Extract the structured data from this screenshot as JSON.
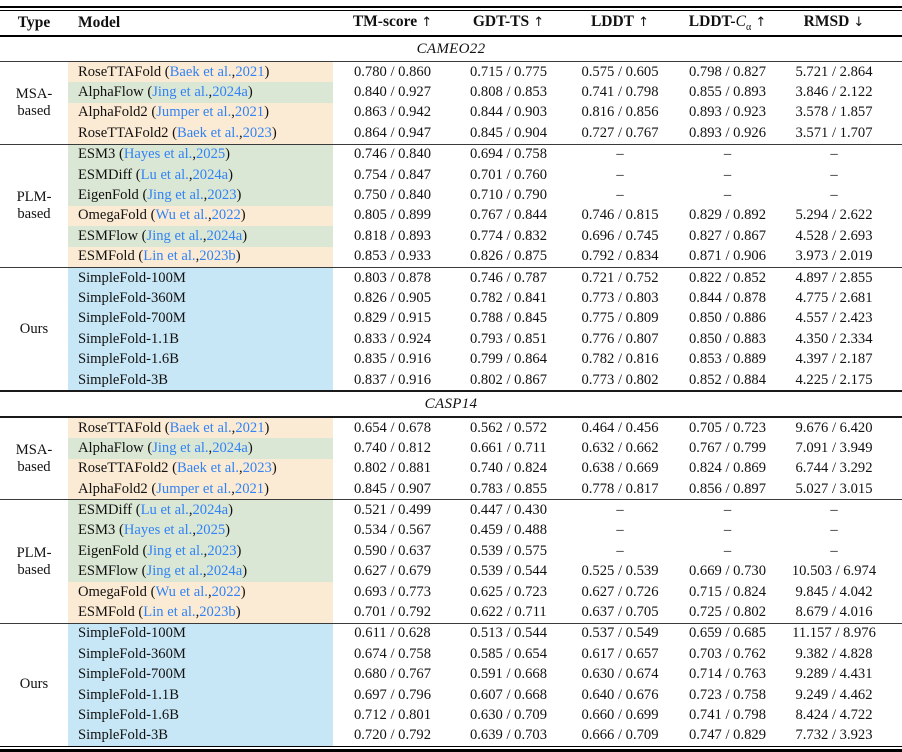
{
  "header": {
    "type": "Type",
    "model": "Model",
    "metrics": [
      {
        "name": "TM-score",
        "arrow": "↑"
      },
      {
        "name": "GDT-TS",
        "arrow": "↑"
      },
      {
        "name": "LDDT",
        "arrow": "↑"
      },
      {
        "name": "LDDT-",
        "italic": "C",
        "sub": "α",
        "arrow": "↑"
      },
      {
        "name": "RMSD",
        "arrow": "↓"
      }
    ]
  },
  "colors": {
    "peach": "#fcebd4",
    "green": "#dbe7d5",
    "blue": "#c8e7f6",
    "link": "#3183f5"
  },
  "sections": [
    {
      "title": "CAMEO22",
      "groups": [
        {
          "label_lines": [
            "MSA-",
            "based"
          ],
          "rows": [
            {
              "model": "RoseTTAFold",
              "cite_authors": "Baek et al.",
              "cite_year": "2021",
              "hl": "peach",
              "values": [
                "0.780 / 0.860",
                "0.715 / 0.775",
                "0.575 / 0.605",
                "0.798 / 0.827",
                "5.721 / 2.864"
              ]
            },
            {
              "model": "AlphaFlow",
              "cite_authors": "Jing et al.",
              "cite_year": "2024a",
              "hl": "green",
              "values": [
                "0.840 / 0.927",
                "0.808 / 0.853",
                "0.741 / 0.798",
                "0.855 / 0.893",
                "3.846 / 2.122"
              ]
            },
            {
              "model": "AlphaFold2",
              "cite_authors": "Jumper et al.",
              "cite_year": "2021",
              "hl": "peach",
              "values": [
                "0.863 / 0.942",
                "0.844 / 0.903",
                "0.816 / 0.856",
                "0.893 / 0.923",
                "3.578 / 1.857"
              ]
            },
            {
              "model": "RoseTTAFold2",
              "cite_authors": "Baek et al.",
              "cite_year": "2023",
              "hl": "peach",
              "values": [
                "0.864 / 0.947",
                "0.845 / 0.904",
                "0.727 / 0.767",
                "0.893 / 0.926",
                "3.571 / 1.707"
              ]
            }
          ]
        },
        {
          "label_lines": [
            "PLM-",
            "based"
          ],
          "rows": [
            {
              "model": "ESM3",
              "cite_authors": "Hayes et al.",
              "cite_year": "2025",
              "hl": "green",
              "values": [
                "0.746 / 0.840",
                "0.694 / 0.758",
                "–",
                "–",
                "–"
              ]
            },
            {
              "model": "ESMDiff",
              "cite_authors": "Lu et al.",
              "cite_year": "2024a",
              "hl": "green",
              "values": [
                "0.754 / 0.847",
                "0.701 / 0.760",
                "–",
                "–",
                "–"
              ]
            },
            {
              "model": "EigenFold",
              "cite_authors": "Jing et al.",
              "cite_year": "2023",
              "hl": "green",
              "values": [
                "0.750 / 0.840",
                "0.710 / 0.790",
                "–",
                "–",
                "–"
              ]
            },
            {
              "model": "OmegaFold",
              "cite_authors": "Wu et al.",
              "cite_year": "2022",
              "hl": "peach",
              "values": [
                "0.805 / 0.899",
                "0.767 / 0.844",
                "0.746 / 0.815",
                "0.829 / 0.892",
                "5.294 / 2.622"
              ]
            },
            {
              "model": "ESMFlow",
              "cite_authors": "Jing et al.",
              "cite_year": "2024a",
              "hl": "green",
              "values": [
                "0.818 / 0.893",
                "0.774 / 0.832",
                "0.696 / 0.745",
                "0.827 / 0.867",
                "4.528 / 2.693"
              ]
            },
            {
              "model": "ESMFold",
              "cite_authors": "Lin et al.",
              "cite_year": "2023b",
              "hl": "peach",
              "values": [
                "0.853 / 0.933",
                "0.826 / 0.875",
                "0.792 / 0.834",
                "0.871 / 0.906",
                "3.973 / 2.019"
              ]
            }
          ]
        },
        {
          "label_lines": [
            "Ours"
          ],
          "rows": [
            {
              "model": "SimpleFold-100M",
              "cite_authors": null,
              "cite_year": null,
              "hl": "blue",
              "values": [
                "0.803 / 0.878",
                "0.746 / 0.787",
                "0.721 / 0.752",
                "0.822 / 0.852",
                "4.897 / 2.855"
              ]
            },
            {
              "model": "SimpleFold-360M",
              "cite_authors": null,
              "cite_year": null,
              "hl": "blue",
              "values": [
                "0.826 / 0.905",
                "0.782 / 0.841",
                "0.773 / 0.803",
                "0.844 / 0.878",
                "4.775 / 2.681"
              ]
            },
            {
              "model": "SimpleFold-700M",
              "cite_authors": null,
              "cite_year": null,
              "hl": "blue",
              "values": [
                "0.829 / 0.915",
                "0.788 / 0.845",
                "0.775 / 0.809",
                "0.850 / 0.886",
                "4.557 / 2.423"
              ]
            },
            {
              "model": "SimpleFold-1.1B",
              "cite_authors": null,
              "cite_year": null,
              "hl": "blue",
              "values": [
                "0.833 / 0.924",
                "0.793 / 0.851",
                "0.776 / 0.807",
                "0.850 / 0.883",
                "4.350 / 2.334"
              ]
            },
            {
              "model": "SimpleFold-1.6B",
              "cite_authors": null,
              "cite_year": null,
              "hl": "blue",
              "values": [
                "0.835 / 0.916",
                "0.799 / 0.864",
                "0.782 / 0.816",
                "0.853 / 0.889",
                "4.397 / 2.187"
              ]
            },
            {
              "model": "SimpleFold-3B",
              "cite_authors": null,
              "cite_year": null,
              "hl": "blue",
              "values": [
                "0.837 / 0.916",
                "0.802 / 0.867",
                "0.773 / 0.802",
                "0.852 / 0.884",
                "4.225 / 2.175"
              ]
            }
          ]
        }
      ]
    },
    {
      "title": "CASP14",
      "groups": [
        {
          "label_lines": [
            "MSA-",
            "based"
          ],
          "rows": [
            {
              "model": "RoseTTAFold",
              "cite_authors": "Baek et al.",
              "cite_year": "2021",
              "hl": "peach",
              "values": [
                "0.654 / 0.678",
                "0.562 / 0.572",
                "0.464 / 0.456",
                "0.705 / 0.723",
                "9.676 / 6.420"
              ]
            },
            {
              "model": "AlphaFlow",
              "cite_authors": "Jing et al.",
              "cite_year": "2024a",
              "hl": "green",
              "values": [
                "0.740 / 0.812",
                "0.661 / 0.711",
                "0.632 / 0.662",
                "0.767 / 0.799",
                "7.091 / 3.949"
              ]
            },
            {
              "model": "RoseTTAFold2",
              "cite_authors": "Baek et al.",
              "cite_year": "2023",
              "hl": "peach",
              "values": [
                "0.802 / 0.881",
                "0.740 / 0.824",
                "0.638 / 0.669",
                "0.824 / 0.869",
                "6.744 / 3.292"
              ]
            },
            {
              "model": "AlphaFold2",
              "cite_authors": "Jumper et al.",
              "cite_year": "2021",
              "hl": "peach",
              "values": [
                "0.845 / 0.907",
                "0.783 / 0.855",
                "0.778 / 0.817",
                "0.856 / 0.897",
                "5.027 / 3.015"
              ]
            }
          ]
        },
        {
          "label_lines": [
            "PLM-",
            "based"
          ],
          "rows": [
            {
              "model": "ESMDiff",
              "cite_authors": "Lu et al.",
              "cite_year": "2024a",
              "hl": "green",
              "values": [
                "0.521 / 0.499",
                "0.447 / 0.430",
                "–",
                "–",
                "–"
              ]
            },
            {
              "model": "ESM3",
              "cite_authors": "Hayes et al.",
              "cite_year": "2025",
              "hl": "green",
              "values": [
                "0.534 / 0.567",
                "0.459 / 0.488",
                "–",
                "–",
                "–"
              ]
            },
            {
              "model": "EigenFold",
              "cite_authors": "Jing et al.",
              "cite_year": "2023",
              "hl": "green",
              "values": [
                "0.590 / 0.637",
                "0.539 / 0.575",
                "–",
                "–",
                "–"
              ]
            },
            {
              "model": "ESMFlow",
              "cite_authors": "Jing et al.",
              "cite_year": "2024a",
              "hl": "green",
              "values": [
                "0.627 / 0.679",
                "0.539 / 0.544",
                "0.525 / 0.539",
                "0.669 / 0.730",
                "10.503 / 6.974"
              ]
            },
            {
              "model": "OmegaFold",
              "cite_authors": "Wu et al.",
              "cite_year": "2022",
              "hl": "peach",
              "values": [
                "0.693 / 0.773",
                "0.625 / 0.723",
                "0.627 / 0.726",
                "0.715 / 0.824",
                "9.845 / 4.042"
              ]
            },
            {
              "model": "ESMFold",
              "cite_authors": "Lin et al.",
              "cite_year": "2023b",
              "hl": "peach",
              "values": [
                "0.701 / 0.792",
                "0.622 / 0.711",
                "0.637 / 0.705",
                "0.725 / 0.802",
                "8.679 / 4.016"
              ]
            }
          ]
        },
        {
          "label_lines": [
            "Ours"
          ],
          "rows": [
            {
              "model": "SimpleFold-100M",
              "cite_authors": null,
              "cite_year": null,
              "hl": "blue",
              "values": [
                "0.611 / 0.628",
                "0.513 / 0.544",
                "0.537 / 0.549",
                "0.659 / 0.685",
                "11.157 / 8.976"
              ]
            },
            {
              "model": "SimpleFold-360M",
              "cite_authors": null,
              "cite_year": null,
              "hl": "blue",
              "values": [
                "0.674 / 0.758",
                "0.585 / 0.654",
                "0.617 / 0.657",
                "0.703 / 0.762",
                "9.382 / 4.828"
              ]
            },
            {
              "model": "SimpleFold-700M",
              "cite_authors": null,
              "cite_year": null,
              "hl": "blue",
              "values": [
                "0.680 / 0.767",
                "0.591 / 0.668",
                "0.630 / 0.674",
                "0.714 / 0.763",
                "9.289 / 4.431"
              ]
            },
            {
              "model": "SimpleFold-1.1B",
              "cite_authors": null,
              "cite_year": null,
              "hl": "blue",
              "values": [
                "0.697 / 0.796",
                "0.607 / 0.668",
                "0.640 / 0.676",
                "0.723 / 0.758",
                "9.249 / 4.462"
              ]
            },
            {
              "model": "SimpleFold-1.6B",
              "cite_authors": null,
              "cite_year": null,
              "hl": "blue",
              "values": [
                "0.712 / 0.801",
                "0.630 / 0.709",
                "0.660 / 0.699",
                "0.741 / 0.798",
                "8.424 / 4.722"
              ]
            },
            {
              "model": "SimpleFold-3B",
              "cite_authors": null,
              "cite_year": null,
              "hl": "blue",
              "values": [
                "0.720 / 0.792",
                "0.639 / 0.703",
                "0.666 / 0.709",
                "0.747 / 0.829",
                "7.732 / 3.923"
              ]
            }
          ]
        }
      ]
    }
  ]
}
